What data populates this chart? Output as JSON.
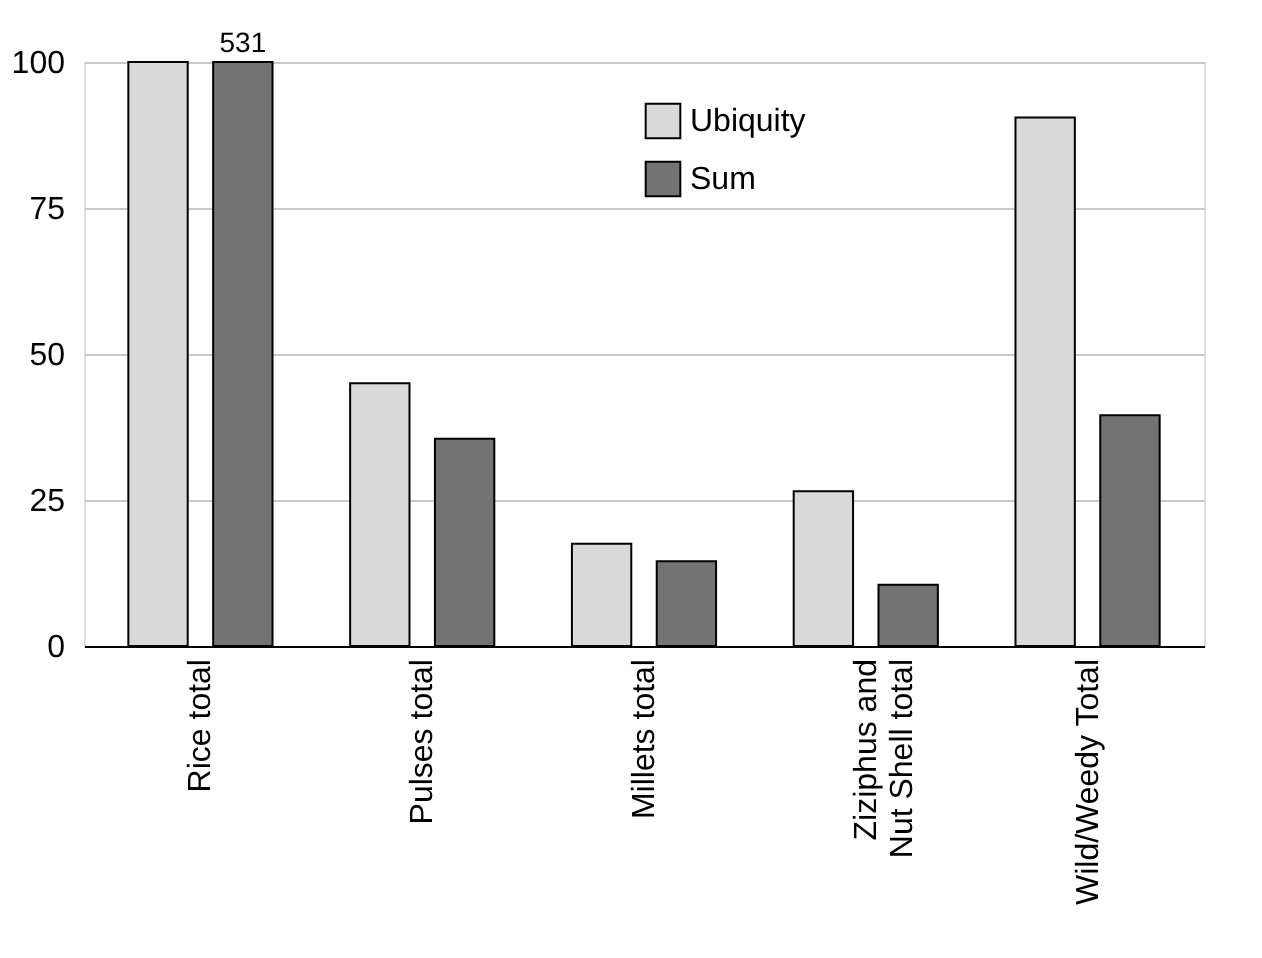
{
  "chart_data": {
    "type": "bar",
    "categories": [
      "Rice total",
      "Pulses total",
      "Millets total",
      "Ziziphus and\nNut Shell total",
      "Wild/Weedy Total"
    ],
    "series": [
      {
        "name": "Ubiquity",
        "color": "#d9d9d9",
        "values": [
          100,
          45,
          17.5,
          26.5,
          90.5
        ]
      },
      {
        "name": "Sum",
        "color": "#737373",
        "values": [
          100,
          35.5,
          14.5,
          10.5,
          39.5
        ]
      }
    ],
    "ylim": [
      0,
      100
    ],
    "yticks": [
      0,
      25,
      50,
      75,
      100
    ],
    "grid": "y",
    "legend": "top",
    "annotations": [
      "531"
    ]
  }
}
